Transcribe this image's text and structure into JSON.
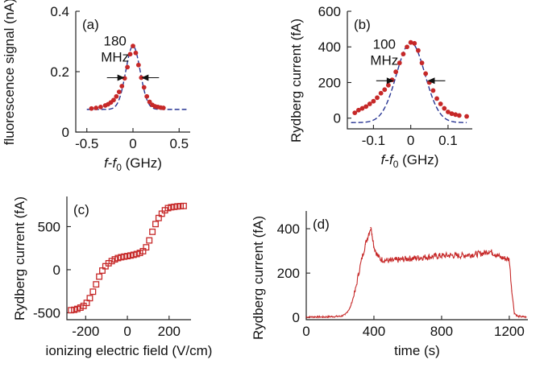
{
  "colors": {
    "data": "#c62828",
    "fit": "#283593",
    "axis": "#222222"
  },
  "chart_data": [
    {
      "id": "a",
      "type": "scatter",
      "panel_label": "(a)",
      "xlabel_parts": [
        "f",
        "-",
        "f",
        "0",
        " (GHz)"
      ],
      "ylabel": "fluorescence signal (nA)",
      "xlim": [
        -0.62,
        0.62
      ],
      "ylim": [
        0,
        0.4
      ],
      "xticks": [
        -0.5,
        0,
        0.5
      ],
      "xtick_labels": [
        "-0.5",
        "0",
        "0.5"
      ],
      "yticks": [
        0,
        0.2,
        0.4
      ],
      "ytick_labels": [
        "0",
        "0.2",
        "0.4"
      ],
      "annotation": [
        "180",
        "MHz"
      ],
      "fwhm_x": [
        -0.09,
        0.09
      ],
      "fwhm_y": 0.18,
      "fit": {
        "shape": "gaussian",
        "amplitude": 0.21,
        "center": 0.0,
        "sigma": 0.078,
        "offset": 0.075,
        "x_range": [
          -0.5,
          0.58
        ]
      },
      "series": [
        {
          "marker": "dot",
          "x": [
            -0.45,
            -0.4,
            -0.35,
            -0.3,
            -0.27,
            -0.24,
            -0.21,
            -0.18,
            -0.15,
            -0.12,
            -0.09,
            -0.06,
            -0.03,
            0.0,
            0.03,
            0.06,
            0.09,
            0.12,
            0.15,
            0.18,
            0.21,
            0.24,
            0.27,
            0.3,
            0.33
          ],
          "y": [
            0.078,
            0.08,
            0.083,
            0.088,
            0.092,
            0.098,
            0.106,
            0.118,
            0.133,
            0.152,
            0.178,
            0.215,
            0.258,
            0.285,
            0.262,
            0.222,
            0.18,
            0.148,
            0.118,
            0.1,
            0.09,
            0.085,
            0.083,
            0.081,
            0.08
          ]
        }
      ]
    },
    {
      "id": "b",
      "type": "scatter",
      "panel_label": "(b)",
      "xlabel_parts": [
        "f",
        "-",
        "f",
        "0",
        " (GHz)"
      ],
      "ylabel": "Rydberg current (fA)",
      "xlim": [
        -0.17,
        0.165
      ],
      "ylim": [
        -60,
        600
      ],
      "xticks": [
        -0.1,
        0,
        0.1
      ],
      "xtick_labels": [
        "-0.1",
        "0",
        "0.1"
      ],
      "yticks": [
        0,
        200,
        400,
        600
      ],
      "ytick_labels": [
        "0",
        "200",
        "400",
        "600"
      ],
      "annotation": [
        "100",
        "MHz"
      ],
      "fwhm_x": [
        -0.045,
        0.045
      ],
      "fwhm_y": 210,
      "fit": {
        "shape": "gaussian",
        "amplitude": 450,
        "center": 0.0,
        "sigma": 0.038,
        "offset": -25,
        "x_range": [
          -0.16,
          0.15
        ]
      },
      "series": [
        {
          "marker": "dot",
          "x": [
            -0.15,
            -0.14,
            -0.13,
            -0.12,
            -0.11,
            -0.1,
            -0.09,
            -0.08,
            -0.07,
            -0.06,
            -0.05,
            -0.04,
            -0.03,
            -0.02,
            -0.01,
            0.0,
            0.01,
            0.02,
            0.03,
            0.04,
            0.05,
            0.06,
            0.07,
            0.08,
            0.09,
            0.1,
            0.11,
            0.12,
            0.13,
            0.15
          ],
          "y": [
            30,
            45,
            55,
            65,
            80,
            95,
            115,
            140,
            160,
            185,
            215,
            260,
            310,
            360,
            400,
            425,
            420,
            380,
            310,
            250,
            200,
            155,
            110,
            80,
            55,
            35,
            25,
            20,
            15,
            10
          ]
        }
      ]
    },
    {
      "id": "c",
      "type": "scatter",
      "panel_label": "(c)",
      "xlabel": "ionizing electric field (V/cm)",
      "ylabel": "Rydberg current (fA)",
      "xlim": [
        -290,
        305
      ],
      "ylim": [
        -580,
        850
      ],
      "xticks": [
        -200,
        0,
        200
      ],
      "xtick_labels": [
        "-200",
        "0",
        "200"
      ],
      "yticks": [
        -500,
        0,
        500
      ],
      "ytick_labels": [
        "-500",
        "0",
        "500"
      ],
      "series": [
        {
          "marker": "square",
          "x": [
            -270,
            -255,
            -240,
            -225,
            -210,
            -195,
            -180,
            -165,
            -150,
            -135,
            -120,
            -105,
            -90,
            -75,
            -60,
            -45,
            -30,
            -15,
            0,
            15,
            30,
            45,
            60,
            75,
            90,
            105,
            120,
            135,
            150,
            165,
            180,
            195,
            210,
            225,
            240,
            255,
            270
          ],
          "y": [
            -470,
            -465,
            -455,
            -440,
            -420,
            -385,
            -330,
            -255,
            -170,
            -80,
            -10,
            40,
            75,
            100,
            120,
            135,
            145,
            152,
            158,
            165,
            173,
            182,
            195,
            215,
            260,
            340,
            440,
            530,
            600,
            650,
            690,
            715,
            725,
            730,
            735,
            738,
            740
          ]
        }
      ]
    },
    {
      "id": "d",
      "type": "line",
      "panel_label": "(d)",
      "xlabel": "time (s)",
      "ylabel": "Rydberg current (fA)",
      "xlim": [
        0,
        1310
      ],
      "ylim": [
        -10,
        480
      ],
      "xticks": [
        0,
        400,
        800,
        1200
      ],
      "xtick_labels": [
        "0",
        "400",
        "800",
        "1200"
      ],
      "yticks": [
        0,
        200,
        400
      ],
      "ytick_labels": [
        "0",
        "200",
        "400"
      ],
      "series": [
        {
          "x": [
            0,
            50,
            100,
            150,
            200,
            230,
            260,
            290,
            310,
            330,
            350,
            370,
            380,
            390,
            400,
            420,
            440,
            470,
            500,
            550,
            600,
            650,
            700,
            750,
            800,
            850,
            900,
            950,
            1000,
            1050,
            1080,
            1100,
            1120,
            1150,
            1180,
            1200,
            1215,
            1230,
            1250,
            1280,
            1300
          ],
          "y": [
            2,
            3,
            2,
            4,
            5,
            12,
            45,
            120,
            200,
            270,
            330,
            380,
            405,
            375,
            320,
            280,
            262,
            258,
            255,
            260,
            265,
            268,
            272,
            275,
            278,
            280,
            278,
            282,
            285,
            290,
            300,
            292,
            285,
            270,
            265,
            262,
            120,
            20,
            5,
            3,
            2
          ]
        }
      ]
    }
  ]
}
